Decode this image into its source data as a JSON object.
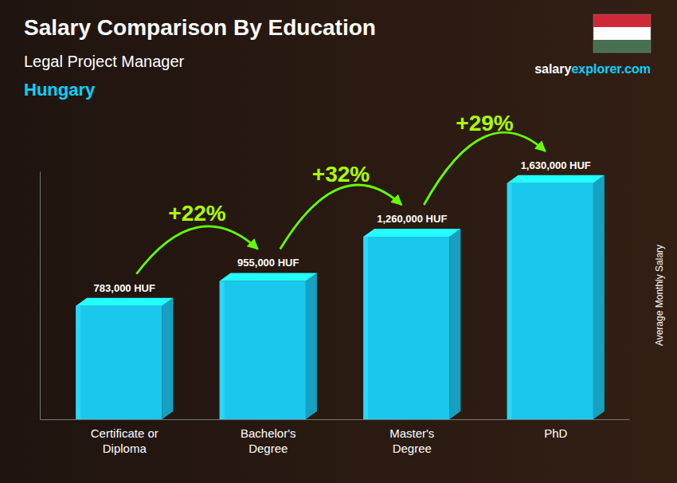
{
  "chart_data": {
    "type": "bar",
    "title": "Salary Comparison By Education",
    "subtitle": "Legal Project Manager",
    "country": "Hungary",
    "watermark": [
      "salary",
      "explorer.com"
    ],
    "ylabel": "Average Monthly Salary",
    "categories": [
      "Certificate or\nDiploma",
      "Bachelor's\nDegree",
      "Master's\nDegree",
      "PhD"
    ],
    "values": [
      783000,
      955000,
      1260000,
      1630000
    ],
    "value_labels": [
      "783,000 HUF",
      "955,000 HUF",
      "1,260,000 HUF",
      "1,630,000 HUF"
    ],
    "data_labels": true,
    "annotations": [
      "+22%",
      "+32%",
      "+29%"
    ],
    "color": "#1ac8ed",
    "flag_colors": [
      "#ce2939",
      "#ffffff",
      "#477050"
    ],
    "ylim": [
      0,
      1711500
    ],
    "tick_labels": false,
    "grid": false
  }
}
